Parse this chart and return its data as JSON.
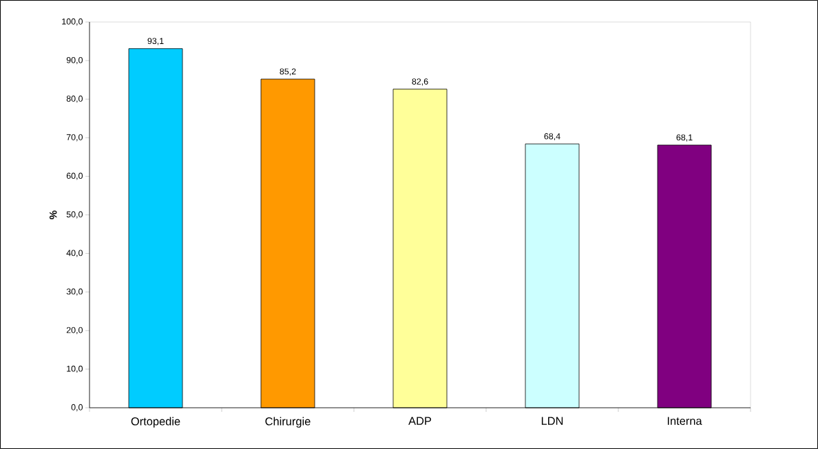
{
  "chart_data": {
    "type": "bar",
    "ylabel": "%",
    "categories": [
      "Ortopedie",
      "Chirurgie",
      "ADP",
      "LDN",
      "Interna"
    ],
    "values": [
      93.1,
      85.2,
      82.6,
      68.4,
      68.1
    ],
    "colors": [
      "#00ccff",
      "#ff9900",
      "#ffff99",
      "#ccffff",
      "#800080"
    ],
    "value_labels": [
      "93,1",
      "85,2",
      "82,6",
      "68,4",
      "68,1"
    ],
    "ylim": [
      0,
      100
    ],
    "yticks": [
      {
        "value": 0,
        "label": "0,0"
      },
      {
        "value": 10,
        "label": "10,0"
      },
      {
        "value": 20,
        "label": "20,0"
      },
      {
        "value": 30,
        "label": "30,0"
      },
      {
        "value": 40,
        "label": "40,0"
      },
      {
        "value": 50,
        "label": "50,0"
      },
      {
        "value": 60,
        "label": "60,0"
      },
      {
        "value": 70,
        "label": "70,0"
      },
      {
        "value": 80,
        "label": "80,0"
      },
      {
        "value": 90,
        "label": "90,0"
      },
      {
        "value": 100,
        "label": "100,0"
      }
    ],
    "grid": false
  }
}
